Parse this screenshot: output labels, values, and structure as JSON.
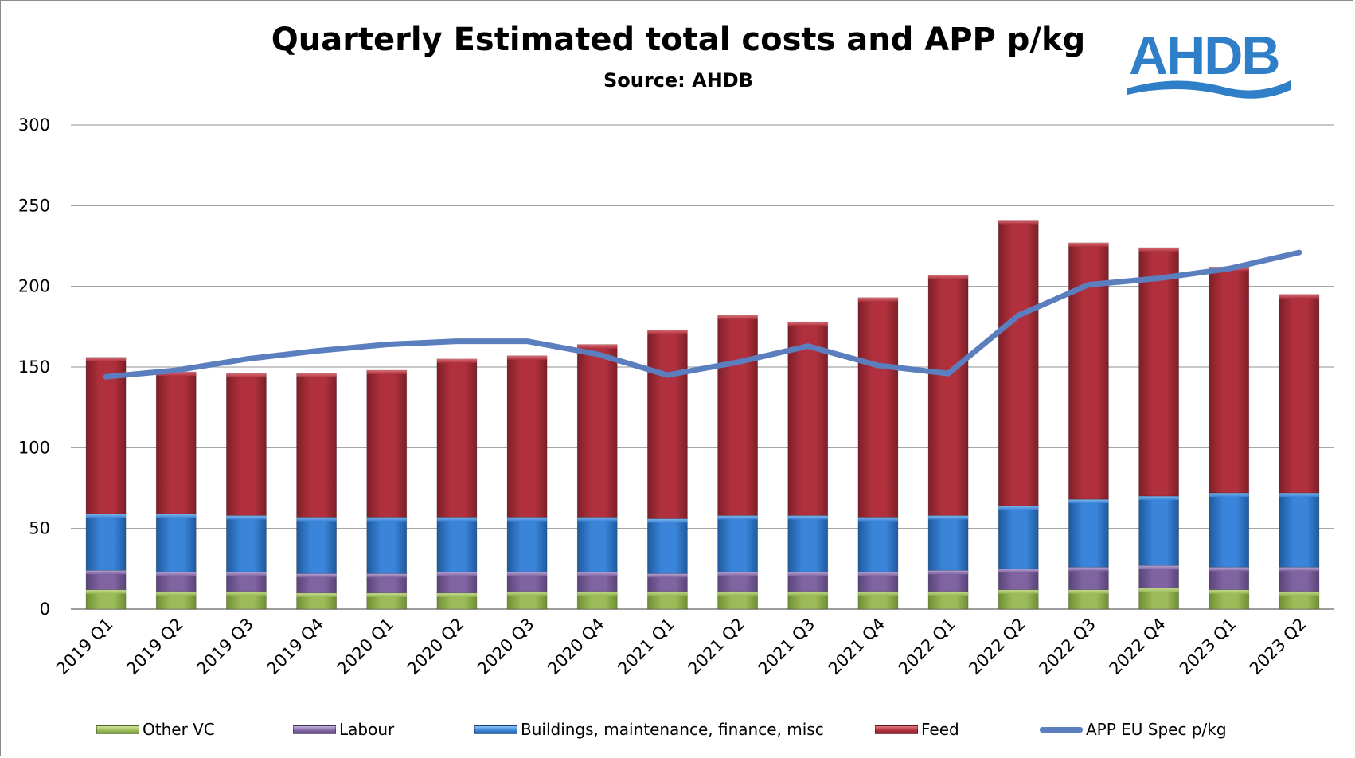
{
  "chart_data": {
    "type": "bar",
    "stacked": true,
    "title": "Quarterly Estimated total costs and APP p/kg",
    "subtitle": "Source: AHDB",
    "xlabel": "",
    "ylabel": "",
    "ylim": [
      0,
      300
    ],
    "yticks": [
      0,
      50,
      100,
      150,
      200,
      250,
      300
    ],
    "grid": true,
    "legend_position": "bottom",
    "categories": [
      "2019 Q1",
      "2019 Q2",
      "2019 Q3",
      "2019 Q4",
      "2020 Q1",
      "2020 Q2",
      "2020 Q3",
      "2020 Q4",
      "2021 Q1",
      "2021 Q2",
      "2021 Q3",
      "2021 Q4",
      "2022 Q1",
      "2022 Q2",
      "2022 Q3",
      "2022 Q4",
      "2023 Q1",
      "2023 Q2"
    ],
    "series": [
      {
        "name": "Other VC",
        "color": "#9bbb59",
        "values": [
          12,
          11,
          11,
          10,
          10,
          10,
          11,
          11,
          11,
          11,
          11,
          11,
          11,
          12,
          12,
          13,
          12,
          11
        ]
      },
      {
        "name": "Labour",
        "color": "#8064a2",
        "values": [
          12,
          12,
          12,
          12,
          12,
          13,
          12,
          12,
          11,
          12,
          12,
          12,
          13,
          13,
          14,
          14,
          14,
          15
        ]
      },
      {
        "name": "Buildings, maintenance, finance, misc",
        "color": "#3a84d9",
        "values": [
          35,
          36,
          35,
          35,
          35,
          34,
          34,
          34,
          34,
          35,
          35,
          34,
          34,
          39,
          42,
          43,
          46,
          46
        ]
      },
      {
        "name": "Feed",
        "color": "#b0313d",
        "values": [
          97,
          88,
          88,
          89,
          91,
          98,
          100,
          107,
          117,
          124,
          120,
          136,
          149,
          177,
          159,
          154,
          140,
          123
        ]
      }
    ],
    "line_series": {
      "name": "APP EU Spec p/kg",
      "color": "#5b7fbe",
      "values": [
        144,
        148,
        155,
        160,
        164,
        166,
        166,
        158,
        145,
        153,
        163,
        151,
        146,
        182,
        201,
        205,
        211,
        221
      ]
    }
  },
  "logo": {
    "text": "AHDB",
    "color": "#2f7fc8"
  }
}
